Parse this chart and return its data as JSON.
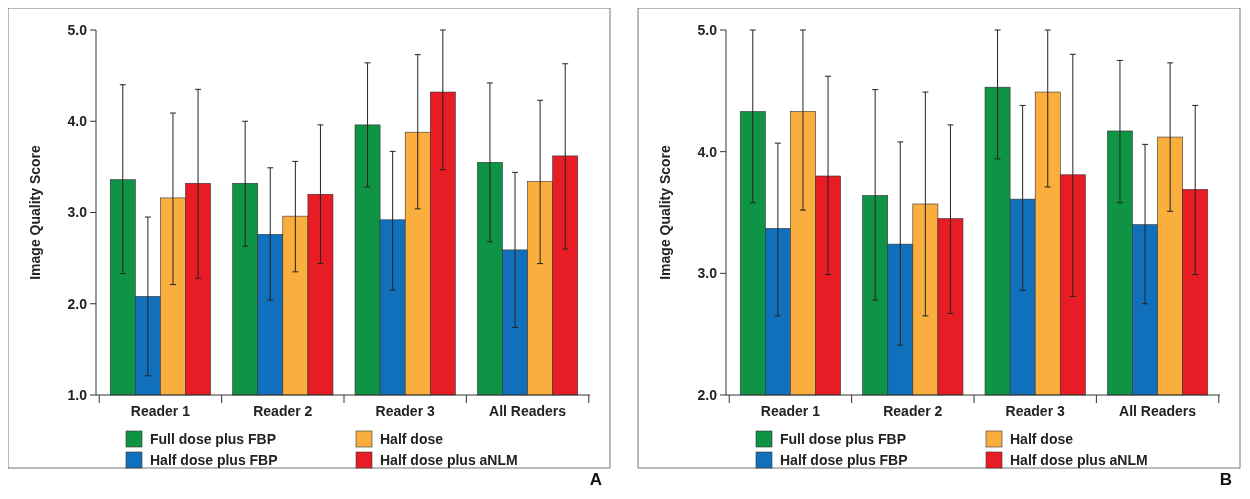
{
  "chart_data": [
    {
      "type": "bar",
      "ylabel": "Image Quality Score",
      "categories": [
        "Reader 1",
        "Reader 2",
        "Reader 3",
        "All Readers"
      ],
      "ylim": [
        1,
        5
      ],
      "yticks": [
        {
          "value": 1,
          "label": "1.0"
        },
        {
          "value": 2,
          "label": "2.0"
        },
        {
          "value": 3,
          "label": "3.0"
        },
        {
          "value": 4,
          "label": "4.0"
        },
        {
          "value": 5,
          "label": "5.0"
        }
      ],
      "grid": false,
      "legend": "bottom",
      "annotations": [
        "A"
      ],
      "series": [
        {
          "name": "Full dose plus FBP",
          "color": "#0f9445",
          "values": [
            3.36,
            3.32,
            3.96,
            3.55
          ],
          "errors": [
            [
              2.33,
              4.4
            ],
            [
              2.63,
              4.0
            ],
            [
              3.28,
              4.64
            ],
            [
              2.68,
              4.42
            ]
          ]
        },
        {
          "name": "Half dose plus FBP",
          "color": "#1170bb",
          "values": [
            2.08,
            2.76,
            2.92,
            2.59
          ],
          "errors": [
            [
              1.21,
              2.95
            ],
            [
              2.04,
              3.49
            ],
            [
              2.15,
              3.67
            ],
            [
              1.74,
              3.44
            ]
          ]
        },
        {
          "name": "Half dose",
          "color": "#f9ae3d",
          "values": [
            3.16,
            2.96,
            3.88,
            3.34
          ],
          "errors": [
            [
              2.21,
              4.09
            ],
            [
              2.35,
              3.56
            ],
            [
              3.04,
              4.73
            ],
            [
              2.44,
              4.23
            ]
          ]
        },
        {
          "name": "Half dose plus aNLM",
          "color": "#e81c24",
          "values": [
            3.32,
            3.2,
            4.32,
            3.62
          ],
          "errors": [
            [
              2.28,
              4.35
            ],
            [
              2.44,
              3.96
            ],
            [
              3.47,
              5.0
            ],
            [
              2.6,
              4.63
            ]
          ]
        }
      ]
    },
    {
      "type": "bar",
      "ylabel": "Image Quality Score",
      "categories": [
        "Reader 1",
        "Reader 2",
        "Reader 3",
        "All Readers"
      ],
      "ylim": [
        2,
        5
      ],
      "yticks": [
        {
          "value": 2,
          "label": "2.0"
        },
        {
          "value": 3,
          "label": "3.0"
        },
        {
          "value": 4,
          "label": "4.0"
        },
        {
          "value": 5,
          "label": "5.0"
        }
      ],
      "grid": false,
      "legend": "bottom",
      "annotations": [
        "B"
      ],
      "series": [
        {
          "name": "Full dose plus FBP",
          "color": "#0f9445",
          "values": [
            4.33,
            3.64,
            4.53,
            4.17
          ],
          "errors": [
            [
              3.58,
              5.0
            ],
            [
              2.78,
              4.51
            ],
            [
              3.94,
              5.0
            ],
            [
              3.58,
              4.75
            ]
          ]
        },
        {
          "name": "Half dose plus FBP",
          "color": "#1170bb",
          "values": [
            3.37,
            3.24,
            3.61,
            3.4
          ],
          "errors": [
            [
              2.65,
              4.07
            ],
            [
              2.41,
              4.08
            ],
            [
              2.86,
              4.38
            ],
            [
              2.75,
              4.06
            ]
          ]
        },
        {
          "name": "Half dose",
          "color": "#f9ae3d",
          "values": [
            4.33,
            3.57,
            4.49,
            4.12
          ],
          "errors": [
            [
              3.52,
              5.0
            ],
            [
              2.65,
              4.49
            ],
            [
              3.71,
              5.0
            ],
            [
              3.51,
              4.73
            ]
          ]
        },
        {
          "name": "Half dose plus aNLM",
          "color": "#e81c24",
          "values": [
            3.8,
            3.45,
            3.81,
            3.69
          ],
          "errors": [
            [
              2.99,
              4.62
            ],
            [
              2.67,
              4.22
            ],
            [
              2.81,
              4.8
            ],
            [
              2.99,
              4.38
            ]
          ]
        }
      ]
    }
  ]
}
